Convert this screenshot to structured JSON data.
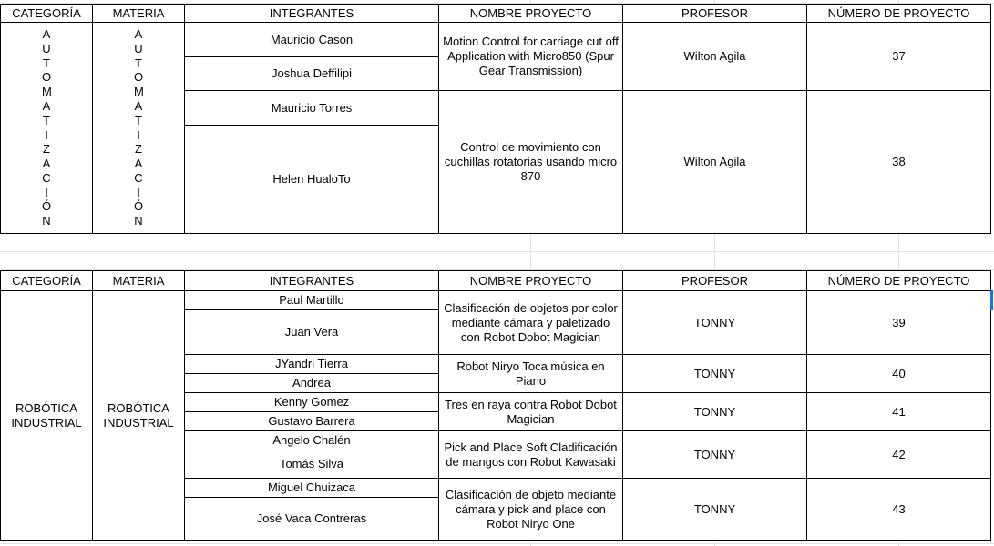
{
  "headers": [
    "CATEGORÍA",
    "MATERIA",
    "INTEGRANTES",
    "NOMBRE PROYECTO",
    "PROFESOR",
    "NÚMERO DE PROYECTO"
  ],
  "table1": {
    "categoria": "AUTOMATIZACIÓN",
    "materia": "AUTOMATIZACIÓN",
    "projects": [
      {
        "integrantes": [
          "Mauricio Cason",
          "Joshua Deffilipi"
        ],
        "nombre": "Motion Control for carriage cut off Application with Micro850 (Spur Gear Transmission)",
        "profesor": "Wilton Agila",
        "numero": "37"
      },
      {
        "integrantes": [
          "Mauricio Torres",
          "Helen HualoTo"
        ],
        "nombre": "Control de movimiento con cuchillas rotatorias usando micro 870",
        "profesor": "Wilton Agila",
        "numero": "38"
      }
    ]
  },
  "table2": {
    "categoria": "ROBÓTICA INDUSTRIAL",
    "materia": "ROBÓTICA INDUSTRIAL",
    "projects": [
      {
        "integrantes": [
          "Paul Martillo",
          "Juan Vera"
        ],
        "nombre": "Clasificación de objetos por color mediante cámara y paletizado con Robot Dobot Magician",
        "profesor": "TONNY",
        "numero": "39"
      },
      {
        "integrantes": [
          "JYandri Tierra",
          "Andrea"
        ],
        "nombre": "Robot Niryo Toca música en Piano",
        "profesor": "TONNY",
        "numero": "40"
      },
      {
        "integrantes": [
          "Kenny Gomez",
          "Gustavo Barrera"
        ],
        "nombre": "Tres en raya contra Robot Dobot Magician",
        "profesor": "TONNY",
        "numero": "41"
      },
      {
        "integrantes": [
          "Angelo Chalén",
          "Tomás Silva"
        ],
        "nombre": "Pick and Place Soft Cladificación de mangos con Robot Kawasaki",
        "profesor": "TONNY",
        "numero": "42"
      },
      {
        "integrantes": [
          "Miguel Chuizaca",
          "José Vaca Contreras"
        ],
        "nombre": "Clasificación de objeto mediante cámara y pick and place con Robot Niryo One",
        "profesor": "TONNY",
        "numero": "43"
      }
    ]
  }
}
